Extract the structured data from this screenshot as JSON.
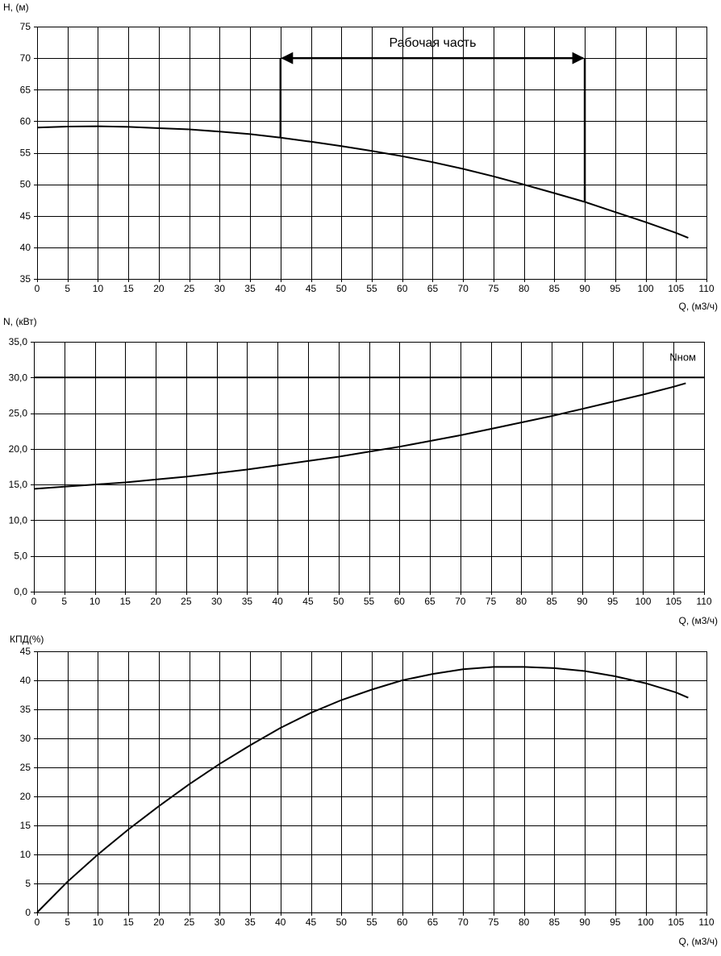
{
  "chart_data": [
    {
      "type": "line",
      "ylabel": "H, (м)",
      "xlabel": "Q, (м3/ч)",
      "xlim": [
        0,
        110
      ],
      "ylim": [
        35,
        75
      ],
      "xticks": [
        "0",
        "5",
        "10",
        "15",
        "20",
        "25",
        "30",
        "35",
        "40",
        "45",
        "50",
        "55",
        "60",
        "65",
        "70",
        "75",
        "80",
        "85",
        "90",
        "95",
        "100",
        "105",
        "110"
      ],
      "yticks": [
        "35",
        "40",
        "45",
        "50",
        "55",
        "60",
        "65",
        "70",
        "75"
      ],
      "grid": true,
      "series": [
        {
          "x": [
            0,
            5,
            10,
            15,
            20,
            25,
            30,
            35,
            40,
            45,
            50,
            55,
            60,
            65,
            70,
            75,
            80,
            85,
            90,
            95,
            100,
            105,
            107
          ],
          "y": [
            59.0,
            59.15,
            59.2,
            59.1,
            58.9,
            58.7,
            58.35,
            57.95,
            57.4,
            56.75,
            56.05,
            55.3,
            54.45,
            53.5,
            52.45,
            51.25,
            49.95,
            48.6,
            47.2,
            45.6,
            44.0,
            42.3,
            41.5
          ]
        }
      ],
      "annotations": [
        {
          "type": "range-arrow",
          "text": "Рабочая часть",
          "x_from": 40,
          "x_to": 90,
          "y": 70
        }
      ]
    },
    {
      "type": "line",
      "ylabel": "N, (кВт)",
      "xlabel": "Q, (м3/ч)",
      "xlim": [
        0,
        110
      ],
      "ylim": [
        0,
        35
      ],
      "xticks": [
        "0",
        "5",
        "10",
        "15",
        "20",
        "25",
        "30",
        "35",
        "40",
        "45",
        "50",
        "55",
        "60",
        "65",
        "70",
        "75",
        "80",
        "85",
        "90",
        "95",
        "100",
        "105",
        "110"
      ],
      "yticks": [
        "0,0",
        "5,0",
        "10,0",
        "15,0",
        "20,0",
        "25,0",
        "30,0",
        "35,0"
      ],
      "grid": true,
      "series": [
        {
          "x": [
            0,
            5,
            10,
            15,
            20,
            25,
            30,
            35,
            40,
            45,
            50,
            55,
            60,
            65,
            70,
            75,
            80,
            85,
            90,
            95,
            100,
            105,
            107
          ],
          "y": [
            14.4,
            14.7,
            15.0,
            15.3,
            15.7,
            16.1,
            16.6,
            17.1,
            17.7,
            18.3,
            18.9,
            19.6,
            20.3,
            21.1,
            21.9,
            22.8,
            23.7,
            24.6,
            25.6,
            26.6,
            27.6,
            28.7,
            29.2
          ]
        }
      ],
      "annotations": [
        {
          "type": "hline",
          "text": "Nном",
          "y": 30
        }
      ]
    },
    {
      "type": "line",
      "ylabel": "КПД(%)",
      "xlabel": "Q, (м3/ч)",
      "xlim": [
        0,
        110
      ],
      "ylim": [
        0,
        45
      ],
      "xticks": [
        "0",
        "5",
        "10",
        "15",
        "20",
        "25",
        "30",
        "35",
        "40",
        "45",
        "50",
        "55",
        "60",
        "65",
        "70",
        "75",
        "80",
        "85",
        "90",
        "95",
        "100",
        "105",
        "110"
      ],
      "yticks": [
        "0",
        "5",
        "10",
        "15",
        "20",
        "25",
        "30",
        "35",
        "40",
        "45"
      ],
      "grid": true,
      "series": [
        {
          "x": [
            0,
            5,
            10,
            15,
            20,
            25,
            30,
            35,
            40,
            45,
            50,
            55,
            60,
            65,
            70,
            75,
            80,
            85,
            90,
            95,
            100,
            105,
            107
          ],
          "y": [
            0,
            5.3,
            10.0,
            14.3,
            18.3,
            22.1,
            25.6,
            28.8,
            31.8,
            34.4,
            36.6,
            38.4,
            40.0,
            41.1,
            41.9,
            42.3,
            42.3,
            42.1,
            41.6,
            40.7,
            39.5,
            37.9,
            37.0
          ]
        }
      ],
      "annotations": []
    }
  ]
}
